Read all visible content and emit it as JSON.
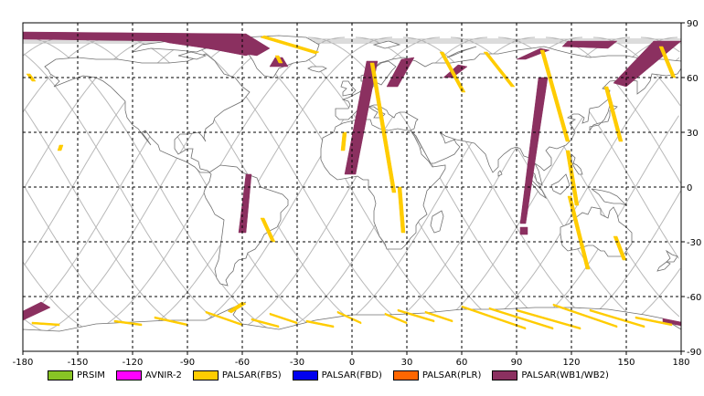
{
  "map": {
    "lon_ticks": [
      "-180",
      "-150",
      "-120",
      "-90",
      "-60",
      "-30",
      "0",
      "30",
      "60",
      "90",
      "120",
      "150",
      "180"
    ],
    "lat_ticks": [
      "90",
      "60",
      "30",
      "0",
      "-30",
      "-60",
      "-90"
    ],
    "lon_range": [
      -180,
      180
    ],
    "lat_range": [
      -90,
      90
    ],
    "grid": true,
    "grid_style": "dashed"
  },
  "legend": [
    {
      "label": "PRSIM",
      "color": "#88c425"
    },
    {
      "label": "AVNIR-2",
      "color": "#ff00ff"
    },
    {
      "label": "PALSAR(FBS)",
      "color": "#ffcc00"
    },
    {
      "label": "PALSAR(FBD)",
      "color": "#0000ee"
    },
    {
      "label": "PALSAR(PLR)",
      "color": "#ff6600"
    },
    {
      "label": "PALSAR(WB1/WB2)",
      "color": "#8b3060"
    }
  ],
  "colors": {
    "orbit_track": "#b8b8b8",
    "coastline": "#707070",
    "wb_swath": "#8b3060",
    "fbs_swath": "#ffcc00"
  }
}
